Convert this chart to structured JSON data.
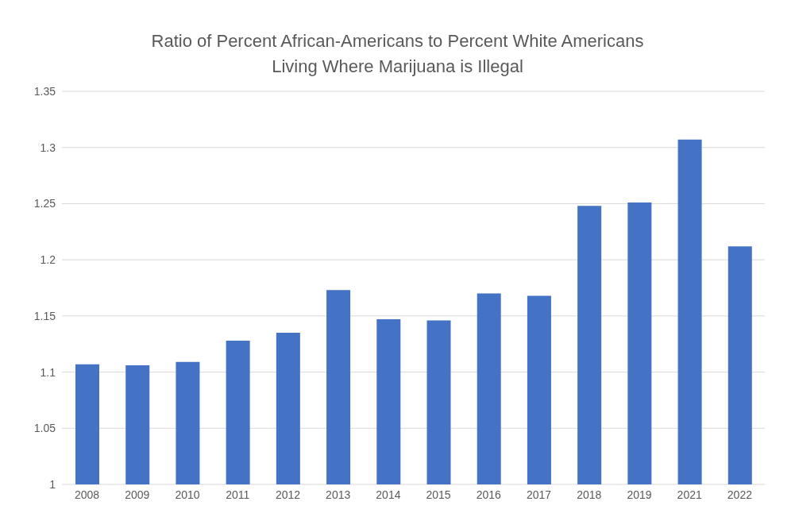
{
  "chart_data": {
    "type": "bar",
    "title": "Ratio of Percent African-Americans to Percent White Americans\nLiving Where Marijuana is Illegal",
    "categories": [
      "2008",
      "2009",
      "2010",
      "2011",
      "2012",
      "2013",
      "2014",
      "2015",
      "2016",
      "2017",
      "2018",
      "2019",
      "2021",
      "2022"
    ],
    "values": [
      1.107,
      1.106,
      1.109,
      1.128,
      1.135,
      1.173,
      1.147,
      1.146,
      1.17,
      1.168,
      1.248,
      1.251,
      1.307,
      1.212
    ],
    "color": "#4472c4",
    "ylim": [
      1,
      1.35
    ],
    "yticks": [
      1,
      1.05,
      1.1,
      1.15,
      1.2,
      1.25,
      1.3,
      1.35
    ],
    "grid": "y"
  }
}
